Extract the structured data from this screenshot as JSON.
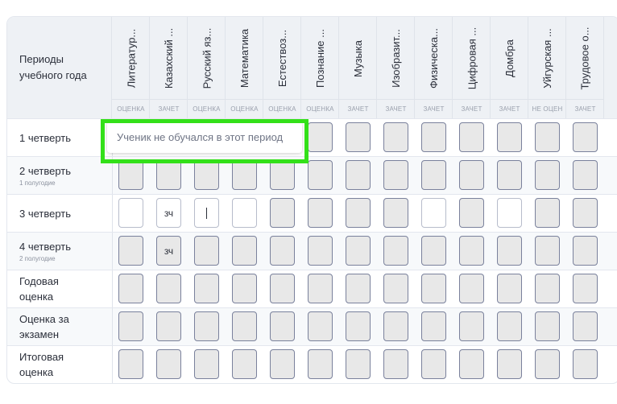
{
  "header": {
    "periods_label_1": "Периоды",
    "periods_label_2": "учебного года"
  },
  "subjects": [
    {
      "name": "Литератур...",
      "type": "ОЦЕНКА"
    },
    {
      "name": "Казахский ...",
      "type": "ЗАЧЕТ"
    },
    {
      "name": "Русский яз...",
      "type": "ОЦЕНКА"
    },
    {
      "name": "Математика",
      "type": "ОЦЕНКА"
    },
    {
      "name": "Естествоз...",
      "type": "ОЦЕНКА"
    },
    {
      "name": "Познание ...",
      "type": "ОЦЕНКА"
    },
    {
      "name": "Музыка",
      "type": "ЗАЧЕТ"
    },
    {
      "name": "Изобразит...",
      "type": "ЗАЧЕТ"
    },
    {
      "name": "Физическа...",
      "type": "ЗАЧЕТ"
    },
    {
      "name": "Цифровая ...",
      "type": "ЗАЧЕТ"
    },
    {
      "name": "Домбра",
      "type": "ЗАЧЕТ"
    },
    {
      "name": "Уйгурская ...",
      "type": "НЕ ОЦЕН"
    },
    {
      "name": "Трудовое о...",
      "type": "ЗАЧЕТ"
    }
  ],
  "rows": [
    {
      "label": "1 четверть",
      "sub": "",
      "enabled": [],
      "values": {}
    },
    {
      "label": "2 четверть",
      "sub": "1 полугодие",
      "enabled": [],
      "values": {}
    },
    {
      "label": "3 четверть",
      "sub": "",
      "enabled": [
        0,
        1,
        2,
        3,
        8,
        10
      ],
      "values": {
        "1": "зч"
      },
      "focused": 2
    },
    {
      "label": "4 четверть",
      "sub": "2 полугодие",
      "enabled": [],
      "values": {
        "1": "зч"
      }
    },
    {
      "label": "Годовая",
      "label2": "оценка",
      "sub": "",
      "enabled": [],
      "values": {}
    },
    {
      "label": "Оценка за",
      "label2": "экзамен",
      "sub": "",
      "enabled": [],
      "values": {}
    },
    {
      "label": "Итоговая",
      "label2": "оценка",
      "sub": "",
      "enabled": [],
      "values": {}
    }
  ],
  "tooltip": {
    "text": "Ученик не обучался в этот период"
  },
  "colors": {
    "highlight": "#33e019",
    "cell_disabled": "#e8e8e8",
    "cell_border": "#7a819c"
  }
}
